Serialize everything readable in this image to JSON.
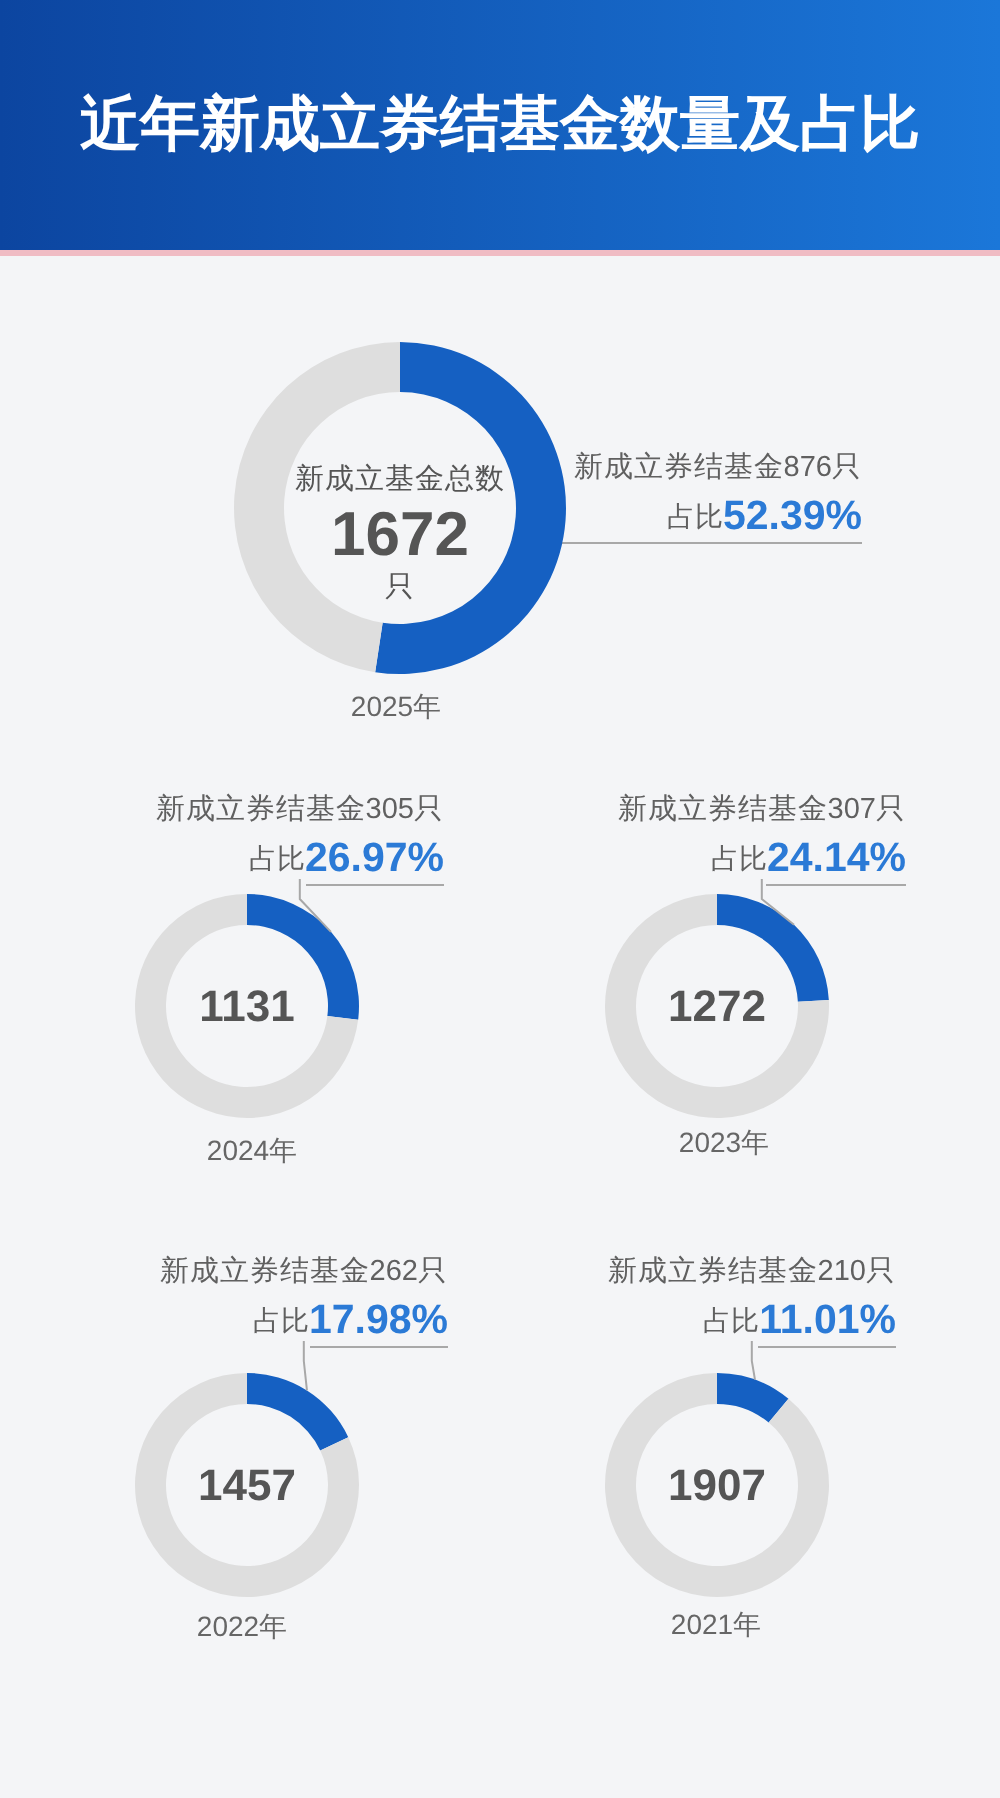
{
  "chart_data": [
    {
      "type": "other",
      "title": "近年新成立券结基金数量及占比"
    },
    {
      "type": "donut",
      "title": "2025年",
      "categories": [
        "新成立券结基金876只",
        null
      ],
      "values": [
        52.39,
        47.61
      ],
      "colors": [
        "#1560c2",
        "#dedede"
      ],
      "value_labels": [
        "52.39%",
        null
      ],
      "annotations": [
        "占比",
        "新成立基金总数",
        "1672",
        "只"
      ]
    },
    {
      "type": "donut",
      "title": "2024年",
      "categories": [
        "新成立券结基金305只",
        null
      ],
      "values": [
        26.97,
        73.03
      ],
      "colors": [
        "#1560c2",
        "#dedede"
      ],
      "value_labels": [
        "26.97%",
        null
      ],
      "annotations": [
        "占比",
        "1131"
      ]
    },
    {
      "type": "donut",
      "title": "2023年",
      "categories": [
        "新成立券结基金307只",
        null
      ],
      "values": [
        24.14,
        75.86
      ],
      "colors": [
        "#1560c2",
        "#dedede"
      ],
      "value_labels": [
        "24.14%",
        null
      ],
      "annotations": [
        "占比",
        "1272"
      ]
    },
    {
      "type": "donut",
      "title": "2022年",
      "categories": [
        "新成立券结基金262只",
        null
      ],
      "values": [
        17.98,
        82.02
      ],
      "colors": [
        "#1560c2",
        "#dedede"
      ],
      "value_labels": [
        "17.98%",
        null
      ],
      "annotations": [
        "占比",
        "1457"
      ]
    },
    {
      "type": "donut",
      "title": "2021年",
      "categories": [
        "新成立券结基金210只",
        null
      ],
      "values": [
        11.01,
        88.99
      ],
      "colors": [
        "#1560c2",
        "#dedede"
      ],
      "value_labels": [
        "11.01%",
        null
      ],
      "annotations": [
        "占比",
        "1907"
      ]
    }
  ]
}
